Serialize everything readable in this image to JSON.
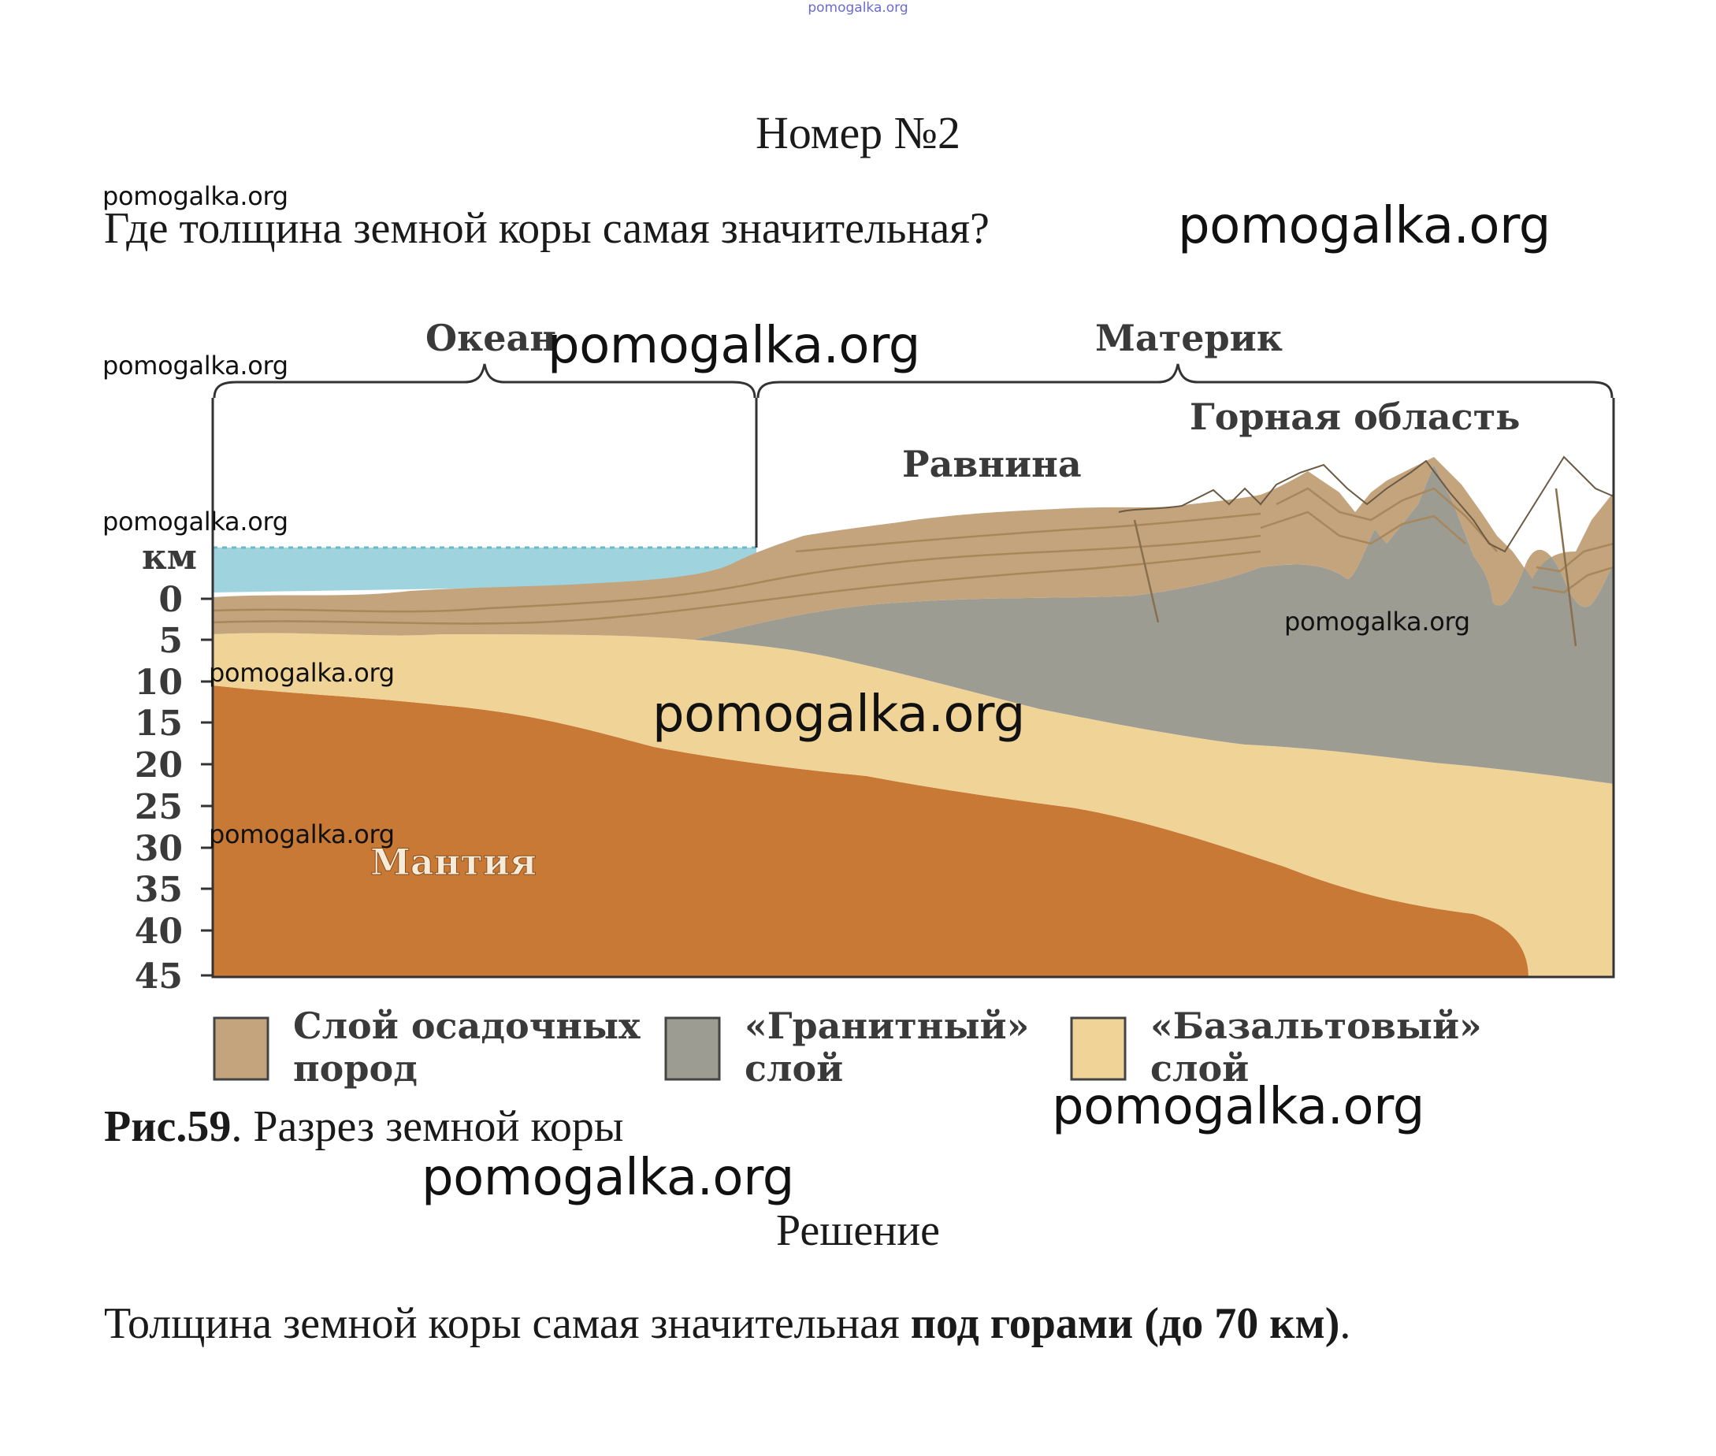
{
  "top_watermark": "pomogalka.org",
  "title": "Номер №2",
  "question": "Где толщина земной коры самая значительная?",
  "watermark": "pomogalka.org",
  "figure": {
    "regions": {
      "ocean": "Океан",
      "continent": "Материк",
      "plain": "Равнина",
      "mountains": "Горная область",
      "mantle": "Мантия"
    },
    "axis": {
      "unit": "км",
      "ticks": [
        "0",
        "5",
        "10",
        "15",
        "20",
        "25",
        "30",
        "35",
        "40",
        "45"
      ]
    },
    "legend": [
      {
        "line1": "Слой осадочных",
        "line2": "пород",
        "color": "#c4a47c"
      },
      {
        "line1": "«Гранитный»",
        "line2": "слой",
        "color": "#9c9c92"
      },
      {
        "line1": "«Базальтовый»",
        "line2": "слой",
        "color": "#f0d396"
      }
    ],
    "colors": {
      "water": "#9fd3de",
      "sediment": "#c4a47c",
      "granite": "#9c9c92",
      "basalt": "#f0d396",
      "mantle": "#c87935"
    }
  },
  "caption": {
    "bold": "Рис.59",
    "text": ". Разрез земной коры"
  },
  "solution_title": "Решение",
  "answer": {
    "before": "Толщина земной коры самая значительная ",
    "bold": "под горами (до 70 км)",
    "after": "."
  }
}
